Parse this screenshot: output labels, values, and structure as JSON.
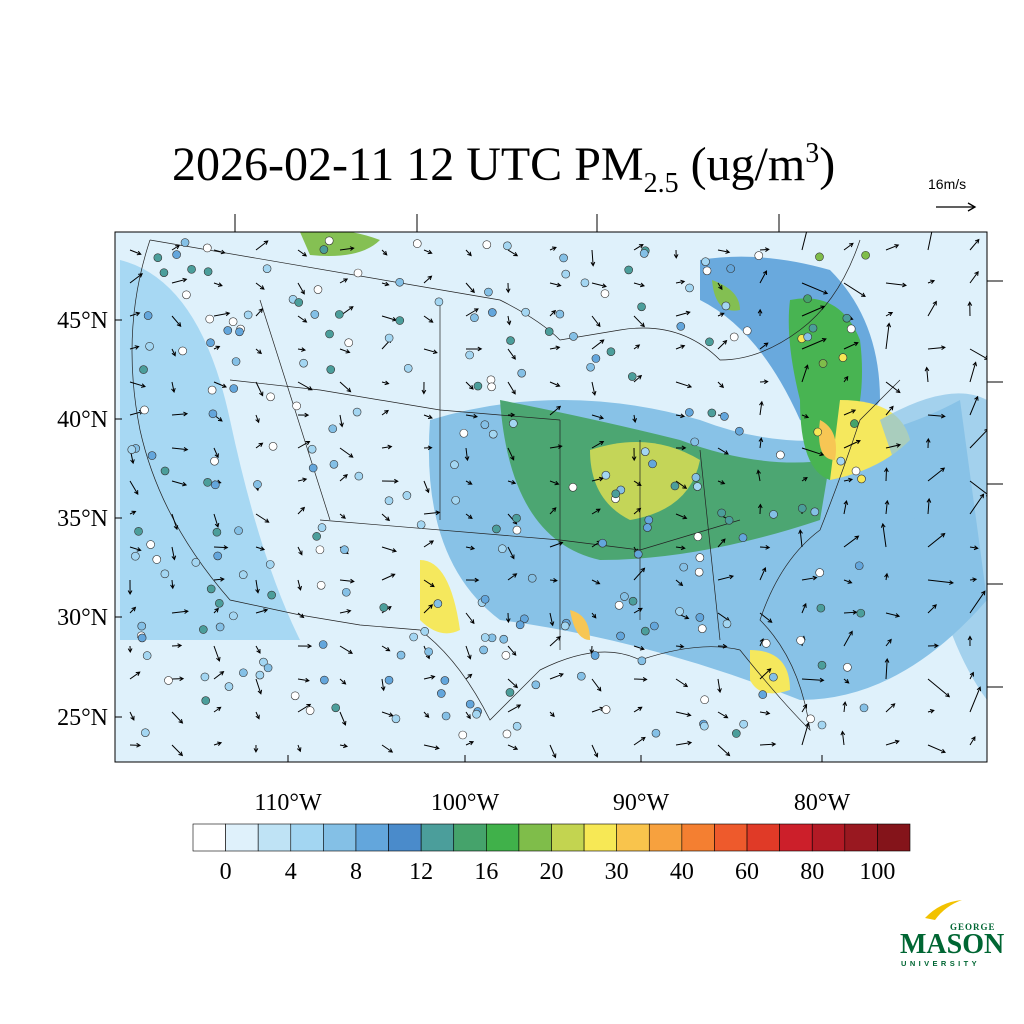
{
  "title": {
    "main": "2026-02-11 12 UTC PM",
    "sub": "2.5",
    "unit_open": " (ug/m",
    "sup": "3",
    "close": ")"
  },
  "wind_reference": "16m/s",
  "map": {
    "lat_labels": [
      "45°N",
      "40°N",
      "35°N",
      "30°N",
      "25°N"
    ],
    "lon_labels": [
      "110°W",
      "100°W",
      "90°W",
      "80°W"
    ]
  },
  "colorbar": {
    "colors": [
      "#ffffff",
      "#dff1fb",
      "#bfe3f5",
      "#a3d6f2",
      "#84c0e6",
      "#63a6dc",
      "#4a8bcb",
      "#4b9e9b",
      "#45a36b",
      "#40b14a",
      "#7fbd4a",
      "#c3d450",
      "#f7e855",
      "#f9c44c",
      "#f7a13e",
      "#f47f31",
      "#ee5a2c",
      "#e03a27",
      "#cc1f2a",
      "#b21a25",
      "#991820",
      "#84141a"
    ],
    "labels": [
      0,
      4,
      8,
      12,
      16,
      20,
      30,
      40,
      60,
      80,
      100
    ]
  },
  "logo": {
    "top": "GEORGE",
    "main": "MASON",
    "bottom": "UNIVERSITY"
  }
}
